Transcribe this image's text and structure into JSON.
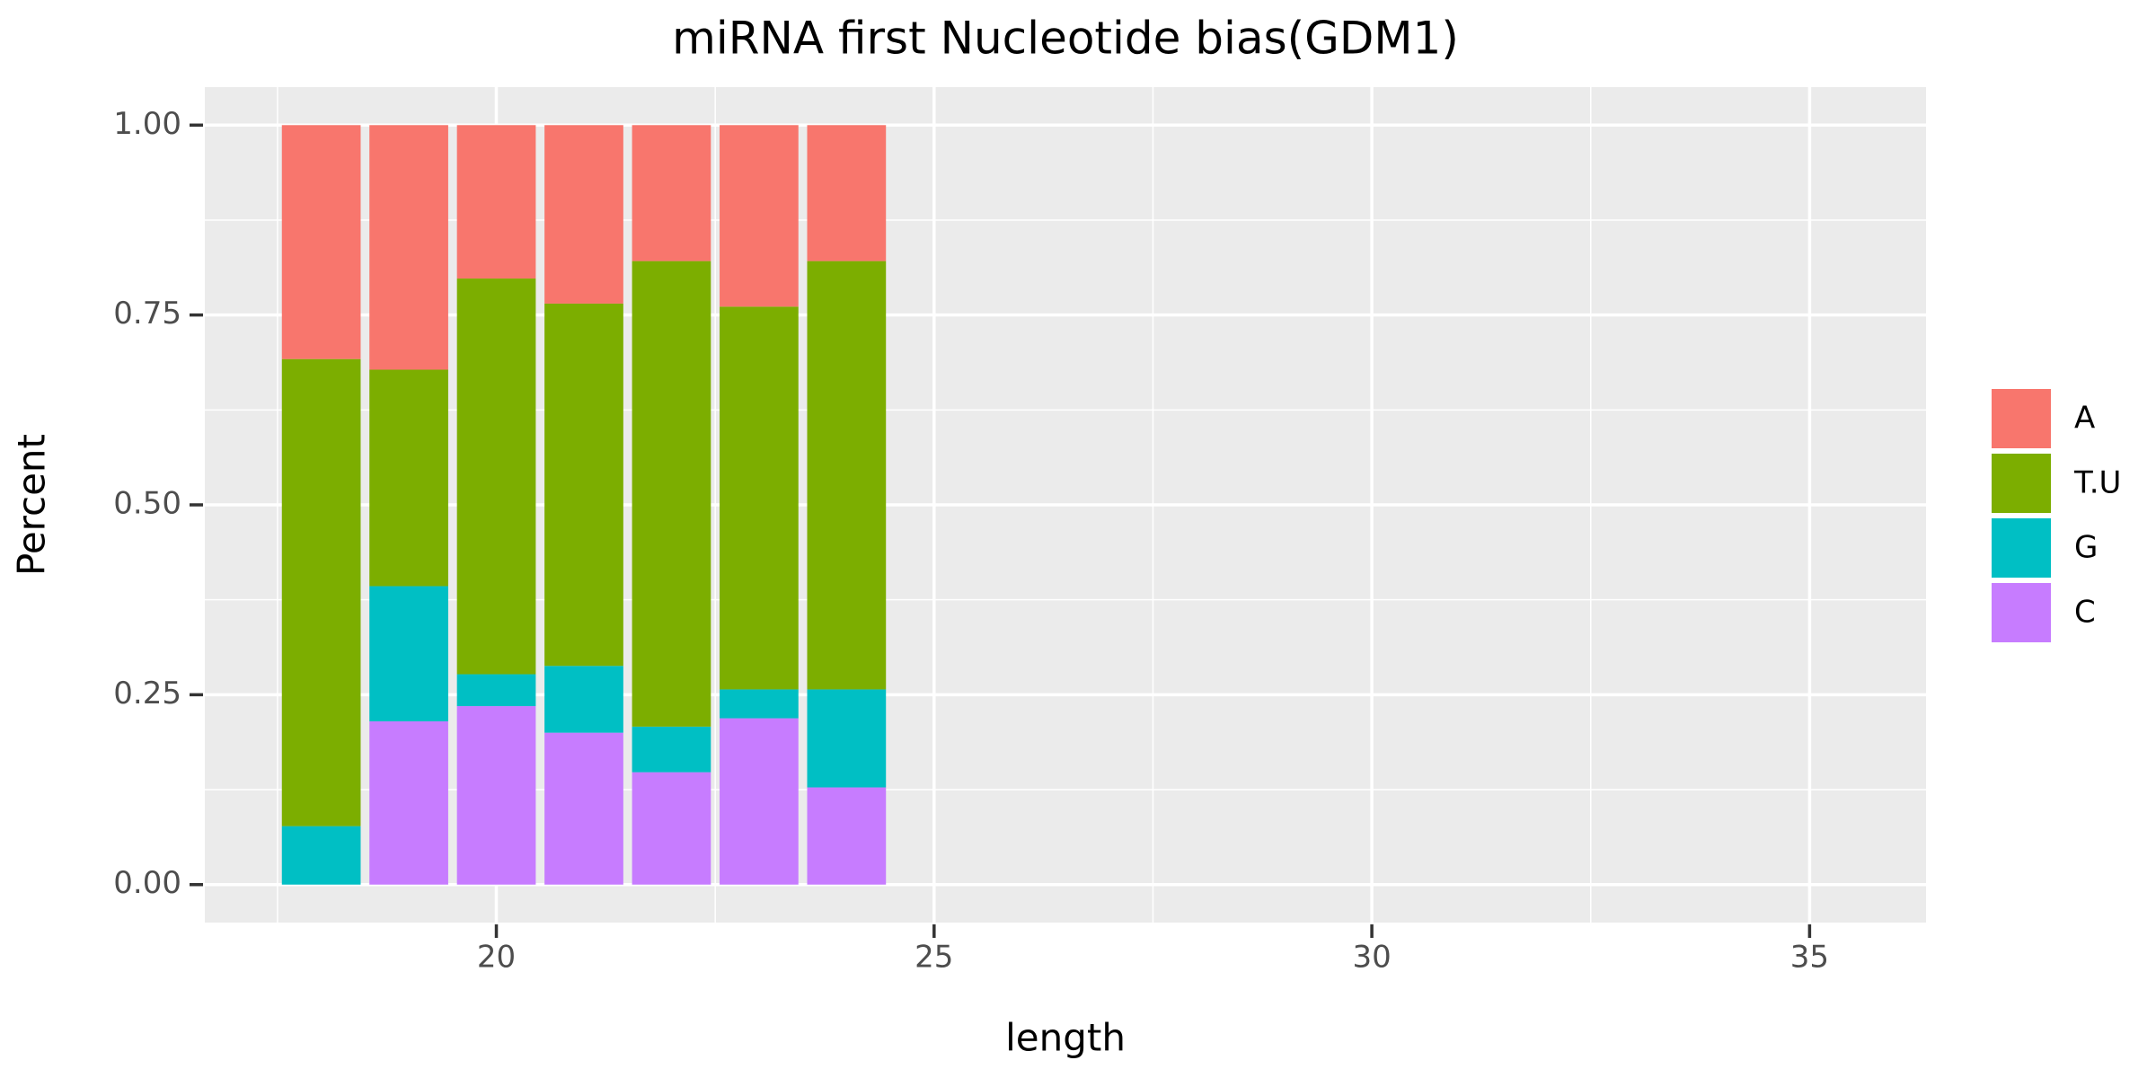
{
  "chart_data": {
    "type": "stacked-bar",
    "title": "miRNA first Nucleotide bias(GDM1)",
    "x_label": "length",
    "y_label": "Percent",
    "x": [
      18,
      19,
      20,
      21,
      22,
      23,
      24
    ],
    "series": [
      {
        "name": "A",
        "color": "#f8766d",
        "values": [
          0.308,
          0.322,
          0.202,
          0.235,
          0.179,
          0.239,
          0.179
        ]
      },
      {
        "name": "T.U",
        "color": "#7cae00",
        "values": [
          0.615,
          0.285,
          0.521,
          0.477,
          0.613,
          0.504,
          0.564
        ]
      },
      {
        "name": "G",
        "color": "#00bfc4",
        "values": [
          0.077,
          0.178,
          0.042,
          0.088,
          0.06,
          0.038,
          0.129
        ]
      },
      {
        "name": "C",
        "color": "#c77cff",
        "values": [
          0,
          0.215,
          0.235,
          0.2,
          0.148,
          0.219,
          0.128
        ]
      }
    ],
    "xlim": [
      16.67,
      36.33
    ],
    "xticks": [
      20,
      25,
      30,
      35
    ],
    "xminorticks": [
      17.5,
      22.5,
      27.5,
      32.5
    ],
    "ylim": [
      -0.05,
      1.05
    ],
    "yticks": [
      {
        "value": 0,
        "label": "0.00"
      },
      {
        "value": 0.25,
        "label": "0.25"
      },
      {
        "value": 0.5,
        "label": "0.50"
      },
      {
        "value": 0.75,
        "label": "0.75"
      },
      {
        "value": 1,
        "label": "1.00"
      }
    ],
    "yminorticks": [
      0.125,
      0.375,
      0.625,
      0.875
    ],
    "bar_width": 0.9,
    "grid": true,
    "legend": "right"
  }
}
